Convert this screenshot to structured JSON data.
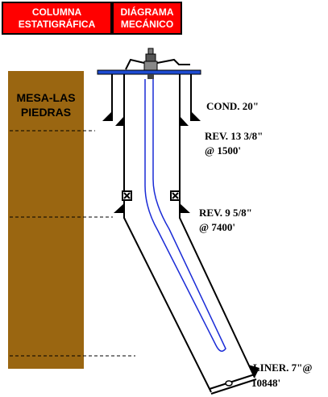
{
  "header": {
    "strat_line1": "COLUMNA",
    "strat_line2": "ESTATIGRÁFICA",
    "mech_line1": "DIÁGRAMA",
    "mech_line2": "MECÁNICO"
  },
  "formation": {
    "line1": "MESA-LAS",
    "line2": "PIEDRAS"
  },
  "casings": {
    "conductor": "COND. 20\"",
    "surface_line1": "REV. 13 3/8\"",
    "surface_line2": "@ 1500'",
    "intermediate_line1": "REV. 9 5/8\"",
    "intermediate_line2": "@ 7400'",
    "liner_line1": "LINER. 7\"@",
    "liner_line2": "10848'"
  },
  "colors": {
    "header_bg": "#ff0000",
    "formation": "#9a6611",
    "tubing": "#1a2bd6",
    "wellhead_flange": "#1d4bd1"
  }
}
